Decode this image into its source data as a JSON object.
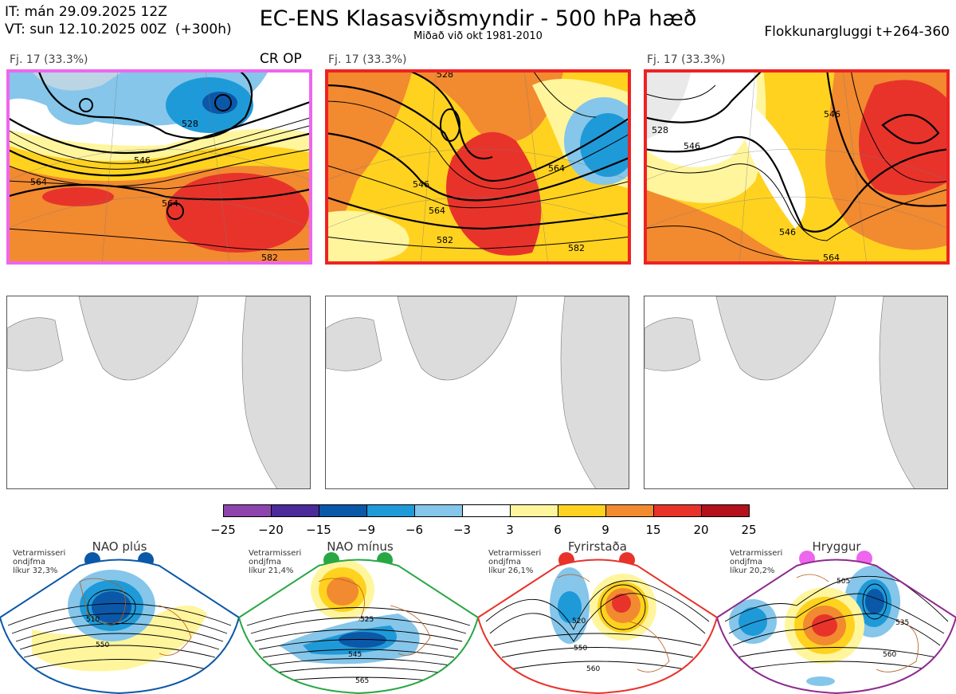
{
  "header": {
    "it": "IT: mán 29.09.2025 12Z",
    "vt": "VT: sun 12.10.2025 00Z  (+300h)",
    "title": "EC-ENS Klasasviðsmyndir - 500 hPa hæð",
    "subtitle": "Miðað við okt 1981-2010",
    "window": "Flokkunargluggi t+264-360"
  },
  "panels": [
    {
      "label": "Fj. 17 (33.3%)",
      "badge": "CR OP",
      "border": "#ee66ee",
      "contours": [
        "528",
        "546",
        "564",
        "564",
        "582"
      ]
    },
    {
      "label": "Fj. 17 (33.3%)",
      "badge": "",
      "border": "#ee2222",
      "contours": [
        "528",
        "546",
        "564",
        "564",
        "582",
        "582"
      ]
    },
    {
      "label": "Fj. 17 (33.3%)",
      "badge": "",
      "border": "#ee2222",
      "contours": [
        "528",
        "546",
        "546",
        "546",
        "564"
      ]
    }
  ],
  "colorbar": {
    "ticks": [
      "−25",
      "−20",
      "−15",
      "−9",
      "−6",
      "−3",
      "3",
      "6",
      "9",
      "15",
      "20",
      "25"
    ],
    "colors": [
      "#8e44ad",
      "#4b2a9a",
      "#0b58a8",
      "#1f9ad8",
      "#85c6ea",
      "#ffffff",
      "#fff59d",
      "#ffd21f",
      "#f28a30",
      "#e8332b",
      "#b3111b"
    ]
  },
  "regimes": [
    {
      "title": "NAO plús",
      "note1": "Vetrarmisseri",
      "note2": "ondjfma",
      "note3": "líkur 32,3%",
      "color": "#0b58a8",
      "contours": [
        "510",
        "550"
      ]
    },
    {
      "title": "NAO mínus",
      "note1": "Vetrarmisseri",
      "note2": "ondjfma",
      "note3": "líkur 21,4%",
      "color": "#28a745",
      "contours": [
        "525",
        "545",
        "565"
      ]
    },
    {
      "title": "Fyrirstaða",
      "note1": "Vetrarmisseri",
      "note2": "ondjfma",
      "note3": "líkur 26,1%",
      "color": "#e8332b",
      "contours": [
        "520",
        "550",
        "560"
      ]
    },
    {
      "title": "Hryggur",
      "note1": "Vetrarmisseri",
      "note2": "ondjfma",
      "note3": "líkur 20,2%",
      "color": "#ee66ee",
      "contours": [
        "505",
        "535",
        "560"
      ]
    }
  ]
}
